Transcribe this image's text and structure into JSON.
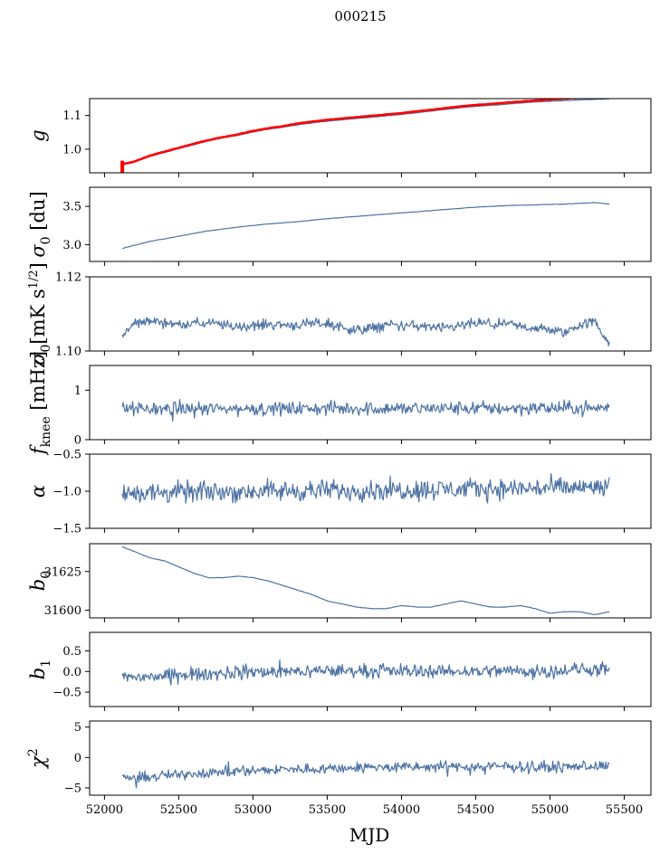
{
  "figure": {
    "suptitle": "000215",
    "xlabel": "MJD",
    "xlim": [
      51900,
      55680
    ],
    "xticks": [
      52000,
      52500,
      53000,
      53500,
      54000,
      54500,
      55000,
      55500
    ],
    "line_color": "#4c72a4",
    "ref_color": "#ff0000"
  },
  "chart_data": [
    {
      "type": "line",
      "panel": "g",
      "ylabel": "g",
      "ylim": [
        0.93,
        1.15
      ],
      "yticks": [
        1.0,
        1.1
      ],
      "series": [
        {
          "role": "data",
          "color": "#4c72a4",
          "x": [
            52120,
            52200,
            52300,
            52400,
            52500,
            52600,
            52700,
            52800,
            52900,
            53000,
            53100,
            53200,
            53300,
            53400,
            53500,
            53600,
            53700,
            53800,
            53900,
            54000,
            54100,
            54200,
            54300,
            54400,
            54500,
            54600,
            54700,
            54800,
            54900,
            55000,
            55100,
            55200,
            55300,
            55400
          ],
          "y": [
            0.953,
            0.962,
            0.978,
            0.99,
            1.002,
            1.013,
            1.025,
            1.034,
            1.041,
            1.051,
            1.059,
            1.065,
            1.072,
            1.078,
            1.083,
            1.087,
            1.091,
            1.095,
            1.099,
            1.103,
            1.108,
            1.113,
            1.118,
            1.123,
            1.127,
            1.13,
            1.133,
            1.137,
            1.14,
            1.142,
            1.144,
            1.146,
            1.148,
            1.149
          ]
        },
        {
          "role": "reference",
          "color": "#ff0000",
          "x": [
            52120,
            52200,
            52300,
            52400,
            52500,
            52600,
            52700,
            52800,
            52900,
            53000,
            53100,
            53200,
            53300,
            53400,
            53500,
            53600,
            53700,
            53800,
            53900,
            54000,
            54100,
            54200,
            54300,
            54400,
            54500,
            54600,
            54700,
            54800,
            54900,
            55000,
            55100,
            55200,
            55300,
            55400
          ],
          "y": [
            0.955,
            0.963,
            0.98,
            0.992,
            1.004,
            1.016,
            1.027,
            1.036,
            1.044,
            1.054,
            1.062,
            1.068,
            1.076,
            1.082,
            1.087,
            1.091,
            1.095,
            1.099,
            1.103,
            1.107,
            1.112,
            1.117,
            1.122,
            1.127,
            1.131,
            1.134,
            1.138,
            1.141,
            1.144,
            1.147,
            1.15,
            1.152,
            1.154,
            1.156
          ]
        }
      ]
    },
    {
      "type": "line",
      "panel": "sigma0_du",
      "ylabel": "σ0 [du]",
      "ylim": [
        2.78,
        3.75
      ],
      "yticks": [
        3.0,
        3.5
      ],
      "series": [
        {
          "role": "data",
          "x": [
            52120,
            52300,
            52500,
            52700,
            52900,
            53100,
            53300,
            53500,
            53700,
            53900,
            54100,
            54300,
            54500,
            54700,
            54900,
            55100,
            55300,
            55400
          ],
          "y": [
            2.95,
            3.04,
            3.11,
            3.18,
            3.23,
            3.27,
            3.3,
            3.34,
            3.37,
            3.4,
            3.43,
            3.46,
            3.49,
            3.51,
            3.52,
            3.53,
            3.55,
            3.53
          ]
        }
      ]
    },
    {
      "type": "line",
      "panel": "sigma0_mK",
      "ylabel": "σ0[mK s1/2]",
      "ylim": [
        1.1,
        1.12
      ],
      "yticks_labels": [
        "1.10",
        "1.12"
      ],
      "yticks": [
        1.1,
        1.12
      ],
      "series": [
        {
          "role": "data",
          "noisy": true,
          "x": [
            52120,
            52200,
            52300,
            52500,
            52700,
            52900,
            53100,
            53300,
            53500,
            53700,
            53900,
            54100,
            54300,
            54500,
            54700,
            54900,
            55100,
            55200,
            55300,
            55400
          ],
          "y": [
            1.104,
            1.1075,
            1.1082,
            1.1072,
            1.1075,
            1.1065,
            1.1072,
            1.107,
            1.1075,
            1.1055,
            1.107,
            1.1068,
            1.106,
            1.1075,
            1.107,
            1.1062,
            1.105,
            1.107,
            1.108,
            1.102
          ]
        }
      ]
    },
    {
      "type": "line",
      "panel": "fknee",
      "ylabel": "fknee [mHz]",
      "ylim": [
        0,
        1.5
      ],
      "yticks": [
        0,
        1
      ],
      "series": [
        {
          "role": "data",
          "noisy": true,
          "x": [
            52120,
            55400
          ],
          "y": [
            0.62,
            0.64
          ]
        }
      ]
    },
    {
      "type": "line",
      "panel": "alpha",
      "ylabel": "α",
      "ylim": [
        -1.5,
        -0.5
      ],
      "yticks": [
        -1.5,
        -1.0,
        -0.5
      ],
      "series": [
        {
          "role": "data",
          "noisy": true,
          "x": [
            52120,
            55400
          ],
          "y": [
            -1.02,
            -0.95
          ]
        }
      ]
    },
    {
      "type": "line",
      "panel": "b0",
      "ylabel": "b0",
      "ylim": [
        31595,
        31643
      ],
      "yticks": [
        31600,
        31625
      ],
      "series": [
        {
          "role": "data",
          "x": [
            52120,
            52200,
            52300,
            52400,
            52500,
            52600,
            52700,
            52800,
            52900,
            53000,
            53100,
            53200,
            53300,
            53400,
            53500,
            53600,
            53700,
            53800,
            53900,
            54000,
            54100,
            54200,
            54300,
            54400,
            54500,
            54600,
            54700,
            54800,
            54900,
            55000,
            55100,
            55200,
            55300,
            55400
          ],
          "y": [
            31641,
            31638,
            31634,
            31632,
            31628,
            31624,
            31621,
            31621,
            31622,
            31621,
            31619,
            31616,
            31613,
            31610,
            31606,
            31604,
            31602,
            31601,
            31601,
            31603,
            31602,
            31602,
            31604,
            31606,
            31604,
            31602,
            31602,
            31603,
            31601,
            31598,
            31599,
            31599,
            31597,
            31599
          ]
        }
      ]
    },
    {
      "type": "line",
      "panel": "b1",
      "ylabel": "b1",
      "ylim": [
        -0.85,
        0.95
      ],
      "yticks": [
        -0.5,
        0.0,
        0.5
      ],
      "series": [
        {
          "role": "data",
          "noisy": true,
          "x": [
            52120,
            52300,
            52600,
            52900,
            53200,
            53500,
            53800,
            54100,
            54400,
            54700,
            55000,
            55200,
            55400
          ],
          "y": [
            -0.15,
            -0.12,
            -0.08,
            -0.02,
            0.0,
            0.02,
            0.01,
            0.02,
            0.0,
            0.02,
            0.01,
            0.05,
            0.04
          ]
        }
      ]
    },
    {
      "type": "line",
      "panel": "chi2",
      "ylabel": "χ2",
      "ylim": [
        -6.2,
        6.0
      ],
      "yticks": [
        -5,
        0,
        5
      ],
      "series": [
        {
          "role": "data",
          "noisy": true,
          "x": [
            52120,
            52300,
            52600,
            52900,
            53200,
            53500,
            53800,
            54100,
            54400,
            54700,
            55000,
            55200,
            55400
          ],
          "y": [
            -3.5,
            -3.2,
            -2.6,
            -2.2,
            -2.0,
            -1.8,
            -1.6,
            -1.6,
            -1.5,
            -1.5,
            -1.6,
            -1.4,
            -1.5
          ]
        }
      ]
    }
  ]
}
